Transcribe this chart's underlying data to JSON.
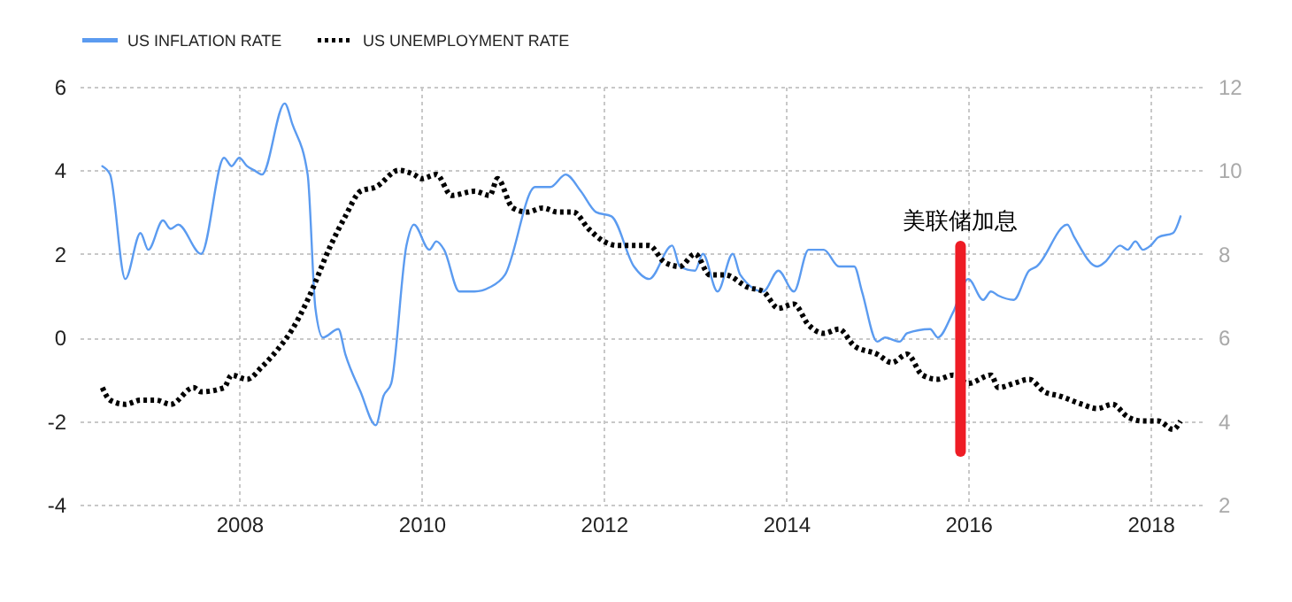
{
  "chart_data": {
    "type": "line",
    "legend": "top left",
    "grid": true,
    "marker": "none",
    "xlim": [
      "2006-04",
      "2018-08"
    ],
    "xticks": [
      "2008",
      "2010",
      "2012",
      "2014",
      "2016",
      "2018"
    ],
    "ylim": [
      -4,
      6
    ],
    "yticks": [
      -4,
      -2,
      0,
      2,
      4,
      6
    ],
    "y2lim": [
      2,
      12
    ],
    "y2ticks": [
      2,
      4,
      6,
      8,
      10,
      12
    ],
    "ref_lines": [
      {
        "axis": "x",
        "value": "2015-12",
        "label": "美联储加息",
        "color": "#ee1c25"
      }
    ],
    "series": [
      {
        "name": "US INFLATION RATE",
        "color": "#5b9bf0",
        "line_style": "solid",
        "x": [
          "2006-07",
          "2006-08",
          "2006-10",
          "2006-12",
          "2007-01",
          "2007-03",
          "2007-04",
          "2007-05",
          "2007-08",
          "2007-11",
          "2007-12",
          "2008-01",
          "2008-02",
          "2008-03",
          "2008-04",
          "2008-07",
          "2008-08",
          "2008-10",
          "2008-11",
          "2008-12",
          "2009-02",
          "2009-03",
          "2009-05",
          "2009-07",
          "2009-08",
          "2009-09",
          "2009-11",
          "2009-12",
          "2010-02",
          "2010-03",
          "2010-04",
          "2010-06",
          "2010-08",
          "2010-10",
          "2010-12",
          "2011-04",
          "2011-06",
          "2011-08",
          "2011-10",
          "2011-12",
          "2012-02",
          "2012-05",
          "2012-07",
          "2012-10",
          "2012-11",
          "2013-01",
          "2013-02",
          "2013-04",
          "2013-06",
          "2013-07",
          "2013-10",
          "2013-12",
          "2014-02",
          "2014-04",
          "2014-06",
          "2014-08",
          "2014-10",
          "2014-11",
          "2015-01",
          "2015-02",
          "2015-04",
          "2015-05",
          "2015-08",
          "2015-09",
          "2015-11",
          "2016-01",
          "2016-03",
          "2016-04",
          "2016-05",
          "2016-07",
          "2016-09",
          "2016-10",
          "2017-02",
          "2017-03",
          "2017-06",
          "2017-07",
          "2017-09",
          "2017-10",
          "2017-11",
          "2017-12",
          "2018-01",
          "2018-02",
          "2018-04",
          "2018-05"
        ],
        "values": [
          4.1,
          3.9,
          1.4,
          2.5,
          2.1,
          2.8,
          2.6,
          2.7,
          2.0,
          4.3,
          4.1,
          4.3,
          4.1,
          4.0,
          3.9,
          5.6,
          5.1,
          3.9,
          0.7,
          0.0,
          0.2,
          -0.4,
          -1.3,
          -2.1,
          -1.4,
          -1.1,
          2.2,
          2.7,
          2.1,
          2.3,
          2.1,
          1.1,
          1.1,
          1.2,
          1.5,
          3.6,
          3.6,
          3.9,
          3.5,
          3.0,
          2.9,
          1.7,
          1.4,
          2.2,
          1.7,
          1.6,
          2.0,
          1.1,
          2.0,
          1.5,
          1.1,
          1.6,
          1.1,
          2.1,
          2.1,
          1.7,
          1.7,
          1.1,
          -0.1,
          0.0,
          -0.1,
          0.1,
          0.2,
          0.0,
          0.6,
          1.4,
          0.9,
          1.1,
          1.0,
          0.9,
          1.6,
          1.7,
          2.7,
          2.4,
          1.7,
          1.8,
          2.2,
          2.1,
          2.3,
          2.1,
          2.2,
          2.4,
          2.5,
          2.9
        ]
      },
      {
        "name": "US UNEMPLOYMENT RATE",
        "color": "#000000",
        "line_style": "dotted",
        "axis": "y2",
        "x": [
          "2006-07",
          "2006-08",
          "2006-10",
          "2006-12",
          "2007-02",
          "2007-04",
          "2007-07",
          "2007-08",
          "2007-11",
          "2007-12",
          "2008-02",
          "2008-04",
          "2008-06",
          "2008-08",
          "2008-10",
          "2009-01",
          "2009-03",
          "2009-05",
          "2009-07",
          "2009-10",
          "2009-12",
          "2010-01",
          "2010-03",
          "2010-05",
          "2010-08",
          "2010-10",
          "2010-11",
          "2011-01",
          "2011-03",
          "2011-05",
          "2011-07",
          "2011-09",
          "2011-11",
          "2012-01",
          "2012-03",
          "2012-07",
          "2012-09",
          "2012-11",
          "2013-01",
          "2013-03",
          "2013-05",
          "2013-08",
          "2013-10",
          "2013-12",
          "2014-02",
          "2014-04",
          "2014-06",
          "2014-08",
          "2014-10",
          "2015-01",
          "2015-03",
          "2015-05",
          "2015-07",
          "2015-09",
          "2015-11",
          "2016-01",
          "2016-04",
          "2016-05",
          "2016-07",
          "2016-09",
          "2016-11",
          "2017-01",
          "2017-04",
          "2017-06",
          "2017-08",
          "2017-10",
          "2017-12",
          "2018-02",
          "2018-04",
          "2018-05"
        ],
        "values": [
          4.8,
          4.5,
          4.4,
          4.5,
          4.5,
          4.4,
          4.8,
          4.7,
          4.8,
          5.1,
          5.0,
          5.3,
          5.7,
          6.2,
          6.9,
          8.2,
          8.9,
          9.5,
          9.6,
          10.0,
          9.9,
          9.8,
          9.9,
          9.4,
          9.5,
          9.4,
          9.8,
          9.1,
          9.0,
          9.1,
          9.0,
          9.0,
          8.6,
          8.3,
          8.2,
          8.2,
          7.8,
          7.7,
          8.0,
          7.5,
          7.5,
          7.2,
          7.1,
          6.7,
          6.8,
          6.3,
          6.1,
          6.2,
          5.8,
          5.6,
          5.4,
          5.6,
          5.1,
          5.0,
          5.1,
          4.9,
          5.1,
          4.8,
          4.9,
          5.0,
          4.7,
          4.6,
          4.4,
          4.3,
          4.4,
          4.1,
          4.0,
          4.0,
          3.8,
          4.0
        ]
      }
    ]
  }
}
